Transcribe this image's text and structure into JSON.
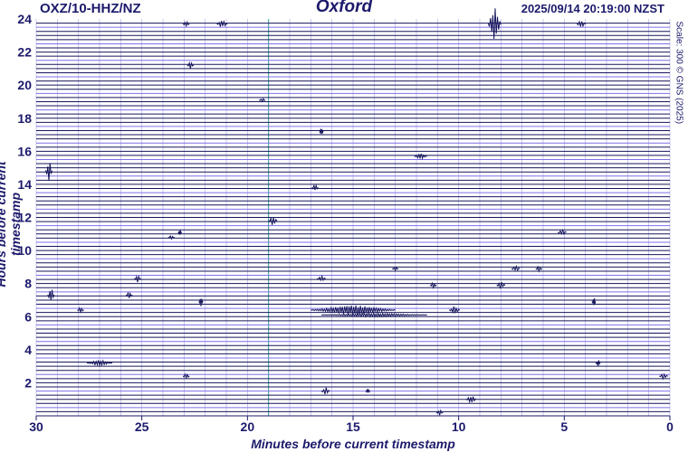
{
  "header": {
    "station": "OXZ/10-HHZ/NZ",
    "site": "Oxford",
    "timestamp": "2025/09/14 20:19:00 NZST",
    "scale_note": "Scale: 300 © GNS (2025)"
  },
  "chart_data": {
    "type": "helicorder",
    "xlabel": "Minutes before current timestamp",
    "ylabel": "Hours before current timestamp",
    "xlim": [
      30,
      0
    ],
    "ylim": [
      0,
      24
    ],
    "x_ticks": [
      30,
      25,
      20,
      15,
      10,
      5,
      0
    ],
    "y_ticks": [
      2,
      4,
      6,
      8,
      10,
      12,
      14,
      16,
      18,
      20,
      22,
      24
    ],
    "grid": true,
    "marker_minute": 19,
    "colors": {
      "trace_dark": "#16165c",
      "trace_light": "#7f6fe8",
      "grid": "#b5b2e6",
      "marker": "#3c9b9b",
      "text": "#1c1a6b"
    },
    "events": [
      {
        "hour": 23.7,
        "minute": 8.3,
        "amplitude": 18,
        "width": 0.6
      },
      {
        "hour": 23.7,
        "minute": 21.2,
        "amplitude": 4,
        "width": 0.5
      },
      {
        "hour": 23.7,
        "minute": 22.9,
        "amplitude": 3,
        "width": 0.3
      },
      {
        "hour": 23.7,
        "minute": 4.2,
        "amplitude": 4,
        "width": 0.4
      },
      {
        "hour": 21.2,
        "minute": 22.7,
        "amplitude": 4,
        "width": 0.3
      },
      {
        "hour": 19.1,
        "minute": 19.3,
        "amplitude": 2,
        "width": 0.3
      },
      {
        "hour": 17.2,
        "minute": 16.5,
        "amplitude": 4,
        "width": 0.1
      },
      {
        "hour": 15.7,
        "minute": 11.8,
        "amplitude": 3,
        "width": 0.6
      },
      {
        "hour": 14.8,
        "minute": 29.4,
        "amplitude": 12,
        "width": 0.3
      },
      {
        "hour": 13.8,
        "minute": 16.8,
        "amplitude": 4,
        "width": 0.3
      },
      {
        "hour": 11.8,
        "minute": 18.8,
        "amplitude": 5,
        "width": 0.4
      },
      {
        "hour": 11.1,
        "minute": 23.2,
        "amplitude": 3,
        "width": 0.1
      },
      {
        "hour": 11.1,
        "minute": 5.1,
        "amplitude": 3,
        "width": 0.4
      },
      {
        "hour": 10.8,
        "minute": 23.6,
        "amplitude": 2,
        "width": 0.3
      },
      {
        "hour": 8.9,
        "minute": 13.0,
        "amplitude": 2,
        "width": 0.3
      },
      {
        "hour": 8.9,
        "minute": 7.3,
        "amplitude": 3,
        "width": 0.4
      },
      {
        "hour": 8.9,
        "minute": 6.2,
        "amplitude": 3,
        "width": 0.3
      },
      {
        "hour": 8.3,
        "minute": 25.2,
        "amplitude": 4,
        "width": 0.3
      },
      {
        "hour": 8.3,
        "minute": 16.5,
        "amplitude": 3,
        "width": 0.4
      },
      {
        "hour": 7.9,
        "minute": 11.2,
        "amplitude": 3,
        "width": 0.3
      },
      {
        "hour": 7.9,
        "minute": 8.0,
        "amplitude": 4,
        "width": 0.4
      },
      {
        "hour": 7.3,
        "minute": 29.3,
        "amplitude": 8,
        "width": 0.3
      },
      {
        "hour": 7.3,
        "minute": 25.6,
        "amplitude": 4,
        "width": 0.3
      },
      {
        "hour": 6.9,
        "minute": 22.2,
        "amplitude": 5,
        "width": 0.2
      },
      {
        "hour": 6.9,
        "minute": 3.6,
        "amplitude": 5,
        "width": 0.15
      },
      {
        "hour": 6.4,
        "minute": 27.9,
        "amplitude": 3,
        "width": 0.3
      },
      {
        "hour": 6.4,
        "minute": 15.0,
        "amplitude": 5,
        "width": 4.0
      },
      {
        "hour": 6.4,
        "minute": 10.2,
        "amplitude": 4,
        "width": 0.5
      },
      {
        "hour": 6.1,
        "minute": 14.0,
        "amplitude": 2,
        "width": 5.0
      },
      {
        "hour": 3.2,
        "minute": 27.0,
        "amplitude": 3,
        "width": 1.2
      },
      {
        "hour": 3.2,
        "minute": 3.4,
        "amplitude": 4,
        "width": 0.2
      },
      {
        "hour": 2.4,
        "minute": 22.9,
        "amplitude": 3,
        "width": 0.3
      },
      {
        "hour": 2.4,
        "minute": 0.3,
        "amplitude": 3,
        "width": 0.4
      },
      {
        "hour": 1.5,
        "minute": 16.3,
        "amplitude": 4,
        "width": 0.4
      },
      {
        "hour": 1.5,
        "minute": 14.3,
        "amplitude": 3,
        "width": 0.2
      },
      {
        "hour": 1.0,
        "minute": 9.4,
        "amplitude": 4,
        "width": 0.5
      },
      {
        "hour": 0.2,
        "minute": 10.9,
        "amplitude": 3,
        "width": 0.3
      }
    ]
  }
}
